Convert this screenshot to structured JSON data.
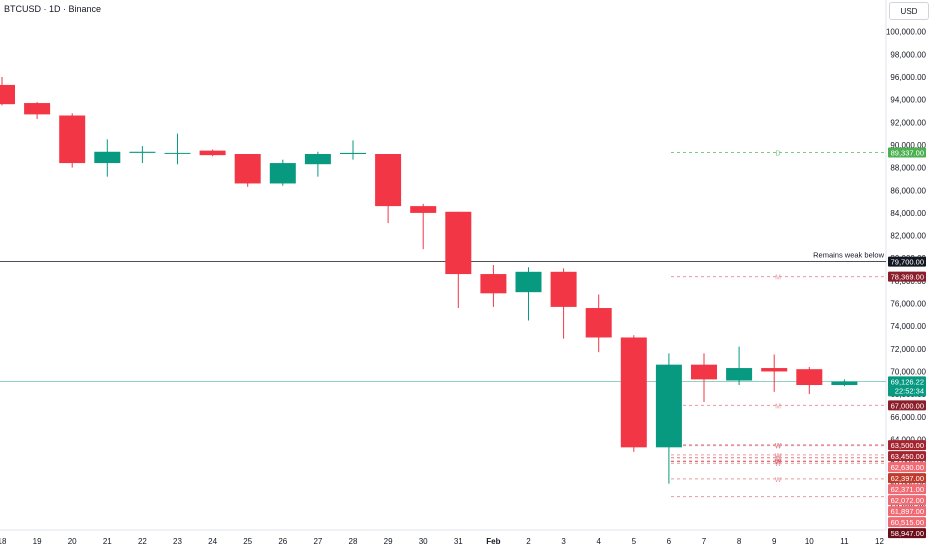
{
  "header": {
    "symbol_title": "BTCUSD · 1D · Binance",
    "currency": "USD"
  },
  "chart_data": {
    "type": "candlestick",
    "title": "BTCUSD · 1D · Binance",
    "x_tick_labels": [
      "18",
      "19",
      "20",
      "21",
      "22",
      "23",
      "24",
      "25",
      "26",
      "27",
      "28",
      "29",
      "30",
      "31",
      "Feb",
      "2",
      "3",
      "4",
      "5",
      "6",
      "7",
      "8",
      "9",
      "10",
      "11",
      "12"
    ],
    "y_ticks": [
      "100,000.00",
      "98,000.00",
      "96,000.00",
      "94,000.00",
      "92,000.00",
      "90,000.00",
      "88,000.00",
      "86,000.00",
      "84,000.00",
      "82,000.00",
      "80,000.00",
      "78,000.00",
      "76,000.00",
      "74,000.00",
      "72,000.00",
      "70,000.00",
      "68,000.00",
      "66,000.00",
      "64,000.00",
      "62,000.00",
      "60,000.00",
      "58,000.00"
    ],
    "ylim": [
      56000,
      102800
    ],
    "colors": {
      "up": "#089981",
      "down": "#f23645"
    },
    "candles": [
      {
        "date": "18",
        "open": 95300,
        "high": 96000,
        "low": 93500,
        "close": 93600
      },
      {
        "date": "19",
        "open": 93700,
        "high": 93800,
        "low": 92300,
        "close": 92700
      },
      {
        "date": "20",
        "open": 92600,
        "high": 92800,
        "low": 88000,
        "close": 88400
      },
      {
        "date": "21",
        "open": 88400,
        "high": 90500,
        "low": 87200,
        "close": 89400
      },
      {
        "date": "22",
        "open": 89300,
        "high": 89900,
        "low": 88400,
        "close": 89400
      },
      {
        "date": "23",
        "open": 89300,
        "high": 91000,
        "low": 88300,
        "close": 89300
      },
      {
        "date": "24",
        "open": 89500,
        "high": 89600,
        "low": 89000,
        "close": 89100
      },
      {
        "date": "25",
        "open": 89200,
        "high": 89200,
        "low": 86300,
        "close": 86600
      },
      {
        "date": "26",
        "open": 86600,
        "high": 88700,
        "low": 86400,
        "close": 88400
      },
      {
        "date": "27",
        "open": 88300,
        "high": 89400,
        "low": 87200,
        "close": 89200
      },
      {
        "date": "28",
        "open": 89200,
        "high": 90400,
        "low": 88700,
        "close": 89300
      },
      {
        "date": "29",
        "open": 89200,
        "high": 89200,
        "low": 83100,
        "close": 84600
      },
      {
        "date": "30",
        "open": 84600,
        "high": 84800,
        "low": 80800,
        "close": 84000
      },
      {
        "date": "31",
        "open": 84100,
        "high": 84100,
        "low": 75600,
        "close": 78600
      },
      {
        "date": "Feb",
        "open": 78600,
        "high": 79400,
        "low": 75700,
        "close": 76900
      },
      {
        "date": "2",
        "open": 77000,
        "high": 79200,
        "low": 74500,
        "close": 78800
      },
      {
        "date": "3",
        "open": 78800,
        "high": 79100,
        "low": 72900,
        "close": 75700
      },
      {
        "date": "4",
        "open": 75600,
        "high": 76800,
        "low": 71700,
        "close": 73000
      },
      {
        "date": "5",
        "open": 73000,
        "high": 73200,
        "low": 62900,
        "close": 63300
      },
      {
        "date": "6",
        "open": 63300,
        "high": 71600,
        "low": 60100,
        "close": 70600
      },
      {
        "date": "7",
        "open": 70600,
        "high": 71600,
        "low": 67300,
        "close": 69300
      },
      {
        "date": "8",
        "open": 69200,
        "high": 72200,
        "low": 68800,
        "close": 70300
      },
      {
        "date": "9",
        "open": 70300,
        "high": 71500,
        "low": 68200,
        "close": 70000
      },
      {
        "date": "10",
        "open": 70200,
        "high": 70400,
        "low": 68000,
        "close": 68800
      },
      {
        "date": "11",
        "open": 68800,
        "high": 69300,
        "low": 68700,
        "close": 69100
      }
    ],
    "horizontal_lines": [
      {
        "price": 79700,
        "style": "solid",
        "color": "#131722",
        "label": "Remains weak below",
        "price_label": "79,700.00",
        "badge_color": "#131722"
      },
      {
        "price": 69126.22,
        "style": "thin",
        "color": "#6ec4b4",
        "label": "",
        "price_label": "69,126.22",
        "badge_color": "#089981",
        "sub_label": "22:52:34"
      }
    ],
    "level_markers": [
      {
        "price": 89337,
        "letter": "D",
        "color": "#7fc98a",
        "price_label": "89,337.00",
        "badge_color": "#4caf50"
      },
      {
        "price": 78369,
        "letter": "M",
        "color": "#e89aa0",
        "price_label": "78,369.00",
        "badge_color": "#8b1e2b"
      },
      {
        "price": 67000,
        "letter": "M",
        "color": "#e89aa0",
        "price_label": "67,000.00",
        "badge_color": "#8b1e2b"
      },
      {
        "price": 63500,
        "letter": "W",
        "color": "#c9414d",
        "price_label": "63,500.00",
        "badge_color": "#a3232f"
      },
      {
        "price": 63450,
        "letter": "W",
        "color": "#e89aa0",
        "price_label": "63,450.00",
        "badge_color": "#a3232f"
      },
      {
        "price": 62630,
        "letter": "W",
        "color": "#e89aa0",
        "price_label": "62,630.00",
        "badge_color": "#f06a74"
      },
      {
        "price": 62397,
        "letter": "W",
        "color": "#e89aa0",
        "price_label": "62,397.00",
        "badge_color": "#c0392b"
      },
      {
        "price": 62371,
        "letter": "D",
        "color": "#e89aa0",
        "price_label": "62,371.00",
        "badge_color": "#f06a74"
      },
      {
        "price": 62072,
        "letter": "W",
        "color": "#c9414d",
        "price_label": "62,072.00",
        "badge_color": "#f06a74"
      },
      {
        "price": 61897,
        "letter": "W",
        "color": "#e89aa0",
        "price_label": "61,897.00",
        "badge_color": "#f06a74"
      },
      {
        "price": 60515,
        "letter": "W",
        "color": "#e89aa0",
        "price_label": "60,515.00",
        "badge_color": "#f06a74"
      },
      {
        "price": 58947,
        "letter": "",
        "color": "#e89aa0",
        "price_label": "58,947.00",
        "badge_color": "#6b0f1a"
      }
    ]
  }
}
